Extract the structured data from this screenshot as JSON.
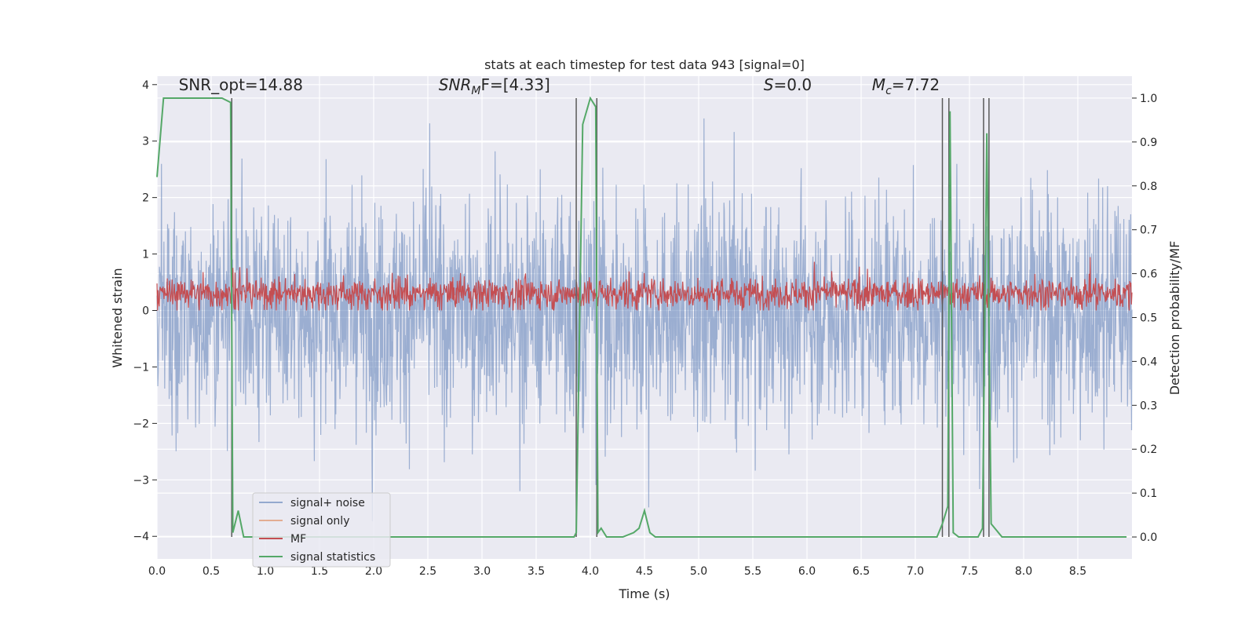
{
  "chart_data": {
    "type": "line",
    "title": "stats at each timestep for test data 943 [signal=0]",
    "xlabel": "Time (s)",
    "ylabel": "Whitened strain",
    "ylabel_right": "Detection probability/MF",
    "xlim": [
      0.0,
      9.0
    ],
    "ylim": [
      -4.4,
      4.15
    ],
    "ylim_right": [
      -0.05,
      1.05
    ],
    "x_ticks": [
      "0.0",
      "0.5",
      "1.0",
      "1.5",
      "2.0",
      "2.5",
      "3.0",
      "3.5",
      "4.0",
      "4.5",
      "5.0",
      "5.5",
      "6.0",
      "6.5",
      "7.0",
      "7.5",
      "8.0",
      "8.5"
    ],
    "y_ticks": [
      "4",
      "3",
      "2",
      "1",
      "0",
      "−1",
      "−2",
      "−3",
      "−4"
    ],
    "y_ticks_right": [
      "1.0",
      "0.9",
      "0.8",
      "0.7",
      "0.6",
      "0.5",
      "0.4",
      "0.3",
      "0.2",
      "0.1",
      "0.0"
    ],
    "grid": true,
    "legend_position": "lower-left",
    "annotations": [
      {
        "id": "snr-opt",
        "text": "SNR_opt=14.88",
        "x": 0.2,
        "y": 3.9
      },
      {
        "id": "snr-mf",
        "main": "SNR",
        "sub": "M",
        "rest": "F=[4.33]",
        "x": 2.6,
        "y": 3.9
      },
      {
        "id": "s-stat",
        "main": "S",
        "rest": "=0.0",
        "x": 5.6,
        "y": 3.9
      },
      {
        "id": "mc",
        "main": "M",
        "sub": "c",
        "rest": "=7.72",
        "x": 6.6,
        "y": 3.9
      }
    ],
    "series": [
      {
        "name": "signal+ noise",
        "color": "#4c72b0",
        "axis": "left",
        "kind": "noise",
        "amplitude_sigma": 1.0
      },
      {
        "name": "signal only",
        "color": "#dd8452",
        "axis": "left",
        "kind": "flat",
        "values": []
      },
      {
        "name": "MF",
        "color": "#c44e52",
        "axis": "left",
        "kind": "noise",
        "center": 0.3
      },
      {
        "name": "signal statistics",
        "color": "#55a868",
        "axis": "right",
        "x": [
          0.0,
          0.06,
          0.1,
          0.2,
          0.3,
          0.4,
          0.5,
          0.6,
          0.68,
          0.7,
          0.75,
          0.8,
          0.9,
          1.0,
          2.0,
          3.0,
          3.5,
          3.85,
          3.87,
          3.93,
          4.0,
          4.05,
          4.07,
          4.1,
          4.15,
          4.3,
          4.4,
          4.45,
          4.5,
          4.55,
          4.6,
          4.7,
          5.0,
          6.0,
          7.0,
          7.2,
          7.25,
          7.3,
          7.32,
          7.35,
          7.4,
          7.5,
          7.58,
          7.62,
          7.66,
          7.7,
          7.8,
          7.85,
          8.0,
          8.5,
          8.9,
          8.95
        ],
        "y": [
          0.82,
          1.0,
          1.0,
          1.0,
          1.0,
          1.0,
          1.0,
          1.0,
          0.99,
          0.01,
          0.06,
          0.0,
          0.0,
          0.0,
          0.0,
          0.0,
          0.0,
          0.0,
          0.01,
          0.94,
          1.0,
          0.98,
          0.01,
          0.02,
          0.0,
          0.0,
          0.01,
          0.02,
          0.06,
          0.01,
          0.0,
          0.0,
          0.0,
          0.0,
          0.0,
          0.0,
          0.03,
          0.07,
          0.97,
          0.01,
          0.0,
          0.0,
          0.0,
          0.02,
          0.92,
          0.03,
          0.0,
          0.0,
          0.0,
          0.0,
          0.0,
          0.0
        ]
      },
      {
        "name": "",
        "color": "#5a5a5a",
        "axis": "right",
        "kind": "vlines",
        "x": [
          0.69,
          3.87,
          4.06,
          7.25,
          7.31,
          7.63,
          7.68
        ]
      }
    ]
  }
}
